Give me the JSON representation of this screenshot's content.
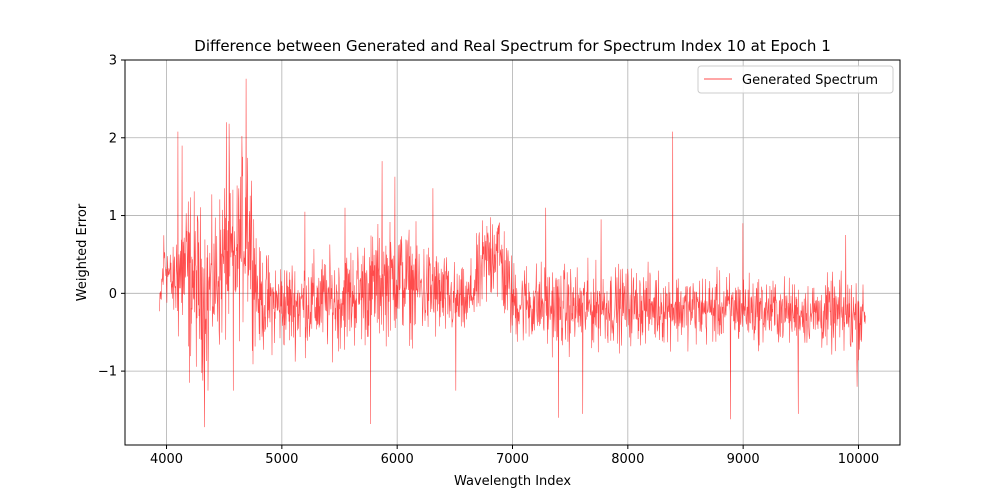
{
  "chart_data": {
    "type": "line",
    "title": "Difference between Generated and Real Spectrum for Spectrum Index 10 at Epoch 1",
    "xlabel": "Wavelength Index",
    "ylabel": "Weighted Error",
    "xlim": [
      3640,
      10360
    ],
    "ylim": [
      -1.95,
      3.0
    ],
    "x_ticks": [
      4000,
      5000,
      6000,
      7000,
      8000,
      9000,
      10000
    ],
    "x_tick_labels": [
      "4000",
      "5000",
      "6000",
      "7000",
      "8000",
      "9000",
      "10000"
    ],
    "y_ticks": [
      -1,
      0,
      1,
      2,
      3
    ],
    "y_tick_labels": [
      "−1",
      "0",
      "1",
      "2",
      "3"
    ],
    "grid": true,
    "legend_position": "top-right",
    "series": [
      {
        "name": "Generated Spectrum",
        "color": "#ff0000",
        "x_start": 3940,
        "x_end": 10060,
        "envelope": [
          [
            3940,
            -0.5,
            0.0
          ],
          [
            3980,
            -0.2,
            1.1
          ],
          [
            4050,
            -0.3,
            0.5
          ],
          [
            4100,
            -0.8,
            1.3
          ],
          [
            4200,
            -0.9,
            1.5
          ],
          [
            4300,
            -1.2,
            1.2
          ],
          [
            4400,
            -0.9,
            1.1
          ],
          [
            4500,
            -0.8,
            1.6
          ],
          [
            4600,
            -0.6,
            1.4
          ],
          [
            4700,
            -0.5,
            2.6
          ],
          [
            4800,
            -0.8,
            0.6
          ],
          [
            5000,
            -0.8,
            0.5
          ],
          [
            5500,
            -0.8,
            0.6
          ],
          [
            5800,
            -0.7,
            0.9
          ],
          [
            6000,
            -0.6,
            1.0
          ],
          [
            6300,
            -0.7,
            0.7
          ],
          [
            6600,
            -0.6,
            0.3
          ],
          [
            6850,
            -0.2,
            1.5
          ],
          [
            7000,
            -0.7,
            0.5
          ],
          [
            7500,
            -0.8,
            0.4
          ],
          [
            8000,
            -0.7,
            0.4
          ],
          [
            8500,
            -0.7,
            0.3
          ],
          [
            9000,
            -0.7,
            0.3
          ],
          [
            9500,
            -0.7,
            0.2
          ],
          [
            10000,
            -0.9,
            0.3
          ],
          [
            10060,
            -0.5,
            0.0
          ]
        ],
        "spikes": [
          [
            4100,
            2.08
          ],
          [
            4135,
            1.9
          ],
          [
            4200,
            -1.15
          ],
          [
            4330,
            -1.72
          ],
          [
            4360,
            -1.25
          ],
          [
            4520,
            2.2
          ],
          [
            4545,
            2.18
          ],
          [
            4580,
            -1.25
          ],
          [
            4690,
            2.76
          ],
          [
            5200,
            1.05
          ],
          [
            5550,
            1.1
          ],
          [
            5770,
            -1.68
          ],
          [
            5870,
            1.7
          ],
          [
            5980,
            1.5
          ],
          [
            6310,
            1.35
          ],
          [
            6510,
            -1.25
          ],
          [
            7290,
            1.1
          ],
          [
            7400,
            -1.6
          ],
          [
            7610,
            -1.55
          ],
          [
            7770,
            0.95
          ],
          [
            8390,
            2.08
          ],
          [
            8890,
            -1.62
          ],
          [
            9000,
            0.9
          ],
          [
            9480,
            -1.55
          ],
          [
            9890,
            0.75
          ],
          [
            9990,
            -1.2
          ]
        ]
      }
    ]
  }
}
